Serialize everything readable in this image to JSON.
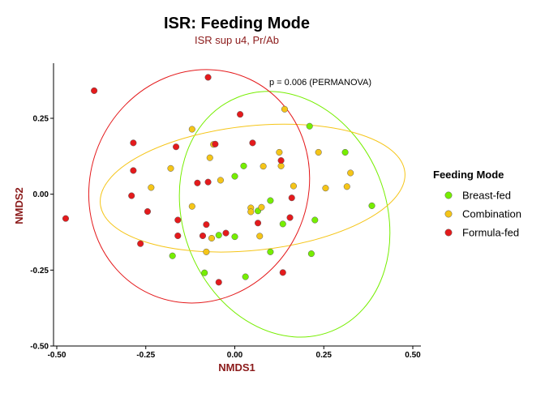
{
  "chart_data": {
    "type": "scatter",
    "title": "ISR: Feeding Mode",
    "subtitle": "ISR sup u4, Pr/Ab",
    "xlabel": "NMDS1",
    "ylabel": "NMDS2",
    "annotation": "p =  0.006 (PERMANOVA)",
    "xlim": [
      -0.52,
      0.52
    ],
    "ylim": [
      -0.5,
      0.42
    ],
    "xticks": [
      -0.5,
      -0.25,
      0.0,
      0.25,
      0.5
    ],
    "xtick_labels": [
      "-0.50",
      "-0.25",
      "0.00",
      "0.25",
      "0.50"
    ],
    "yticks": [
      -0.5,
      -0.25,
      0.0,
      0.25
    ],
    "ytick_labels": [
      "-0.50",
      "-0.25",
      "0.00",
      "0.25"
    ],
    "grid": false,
    "legend_title": "Feeding Mode",
    "legend_position": "right",
    "colors": {
      "title": "#000000",
      "subtitle": "#8b1a1a",
      "axis_title": "#8b1a1a"
    },
    "series": [
      {
        "name": "Breast-fed",
        "color": "#76ee00",
        "points": [
          [
            0.21,
            0.224
          ],
          [
            0.31,
            0.138
          ],
          [
            0.025,
            0.093
          ],
          [
            0.0,
            0.059
          ],
          [
            0.1,
            -0.021
          ],
          [
            0.065,
            -0.055
          ],
          [
            0.385,
            -0.038
          ],
          [
            0.135,
            -0.098
          ],
          [
            0.225,
            -0.085
          ],
          [
            -0.045,
            -0.135
          ],
          [
            0.0,
            -0.14
          ],
          [
            -0.175,
            -0.203
          ],
          [
            0.1,
            -0.19
          ],
          [
            0.215,
            -0.196
          ],
          [
            -0.085,
            -0.259
          ],
          [
            0.03,
            -0.272
          ]
        ]
      },
      {
        "name": "Combination",
        "color": "#f5c518",
        "points": [
          [
            0.14,
            0.28
          ],
          [
            -0.12,
            0.214
          ],
          [
            -0.07,
            0.12
          ],
          [
            -0.06,
            0.164
          ],
          [
            0.125,
            0.138
          ],
          [
            0.235,
            0.138
          ],
          [
            0.08,
            0.092
          ],
          [
            -0.18,
            0.085
          ],
          [
            0.13,
            0.093
          ],
          [
            0.325,
            0.07
          ],
          [
            -0.235,
            0.022
          ],
          [
            -0.04,
            0.046
          ],
          [
            0.165,
            0.027
          ],
          [
            0.255,
            0.02
          ],
          [
            0.315,
            0.025
          ],
          [
            -0.12,
            -0.04
          ],
          [
            0.045,
            -0.045
          ],
          [
            0.075,
            -0.043
          ],
          [
            0.045,
            -0.058
          ],
          [
            -0.065,
            -0.145
          ],
          [
            0.07,
            -0.138
          ],
          [
            -0.08,
            -0.19
          ]
        ]
      },
      {
        "name": "Formula-fed",
        "color": "#e41a1c",
        "points": [
          [
            -0.395,
            0.341
          ],
          [
            -0.075,
            0.385
          ],
          [
            0.015,
            0.263
          ],
          [
            -0.285,
            0.169
          ],
          [
            -0.055,
            0.165
          ],
          [
            0.05,
            0.169
          ],
          [
            -0.165,
            0.156
          ],
          [
            0.13,
            0.111
          ],
          [
            -0.285,
            0.078
          ],
          [
            -0.105,
            0.037
          ],
          [
            -0.075,
            0.04
          ],
          [
            -0.29,
            -0.005
          ],
          [
            0.16,
            -0.012
          ],
          [
            -0.245,
            -0.057
          ],
          [
            -0.16,
            -0.085
          ],
          [
            0.155,
            -0.077
          ],
          [
            -0.08,
            -0.1
          ],
          [
            0.065,
            -0.095
          ],
          [
            -0.025,
            -0.128
          ],
          [
            -0.16,
            -0.137
          ],
          [
            -0.09,
            -0.137
          ],
          [
            -0.265,
            -0.163
          ],
          [
            -0.475,
            -0.08
          ],
          [
            0.135,
            -0.258
          ],
          [
            -0.045,
            -0.29
          ]
        ]
      }
    ],
    "ellipses": [
      {
        "name": "Breast-fed",
        "color": "#76ee00",
        "center": [
          0.14,
          -0.066
        ],
        "rx": 0.285,
        "ry": 0.415,
        "rotation_deg": 22
      },
      {
        "name": "Combination",
        "color": "#f5c518",
        "center": [
          0.05,
          0.02
        ],
        "rx": 0.43,
        "ry": 0.205,
        "rotation_deg": 6
      },
      {
        "name": "Formula-fed",
        "color": "#e41a1c",
        "center": [
          -0.1,
          0.026
        ],
        "rx": 0.305,
        "ry": 0.39,
        "rotation_deg": -25
      }
    ]
  }
}
